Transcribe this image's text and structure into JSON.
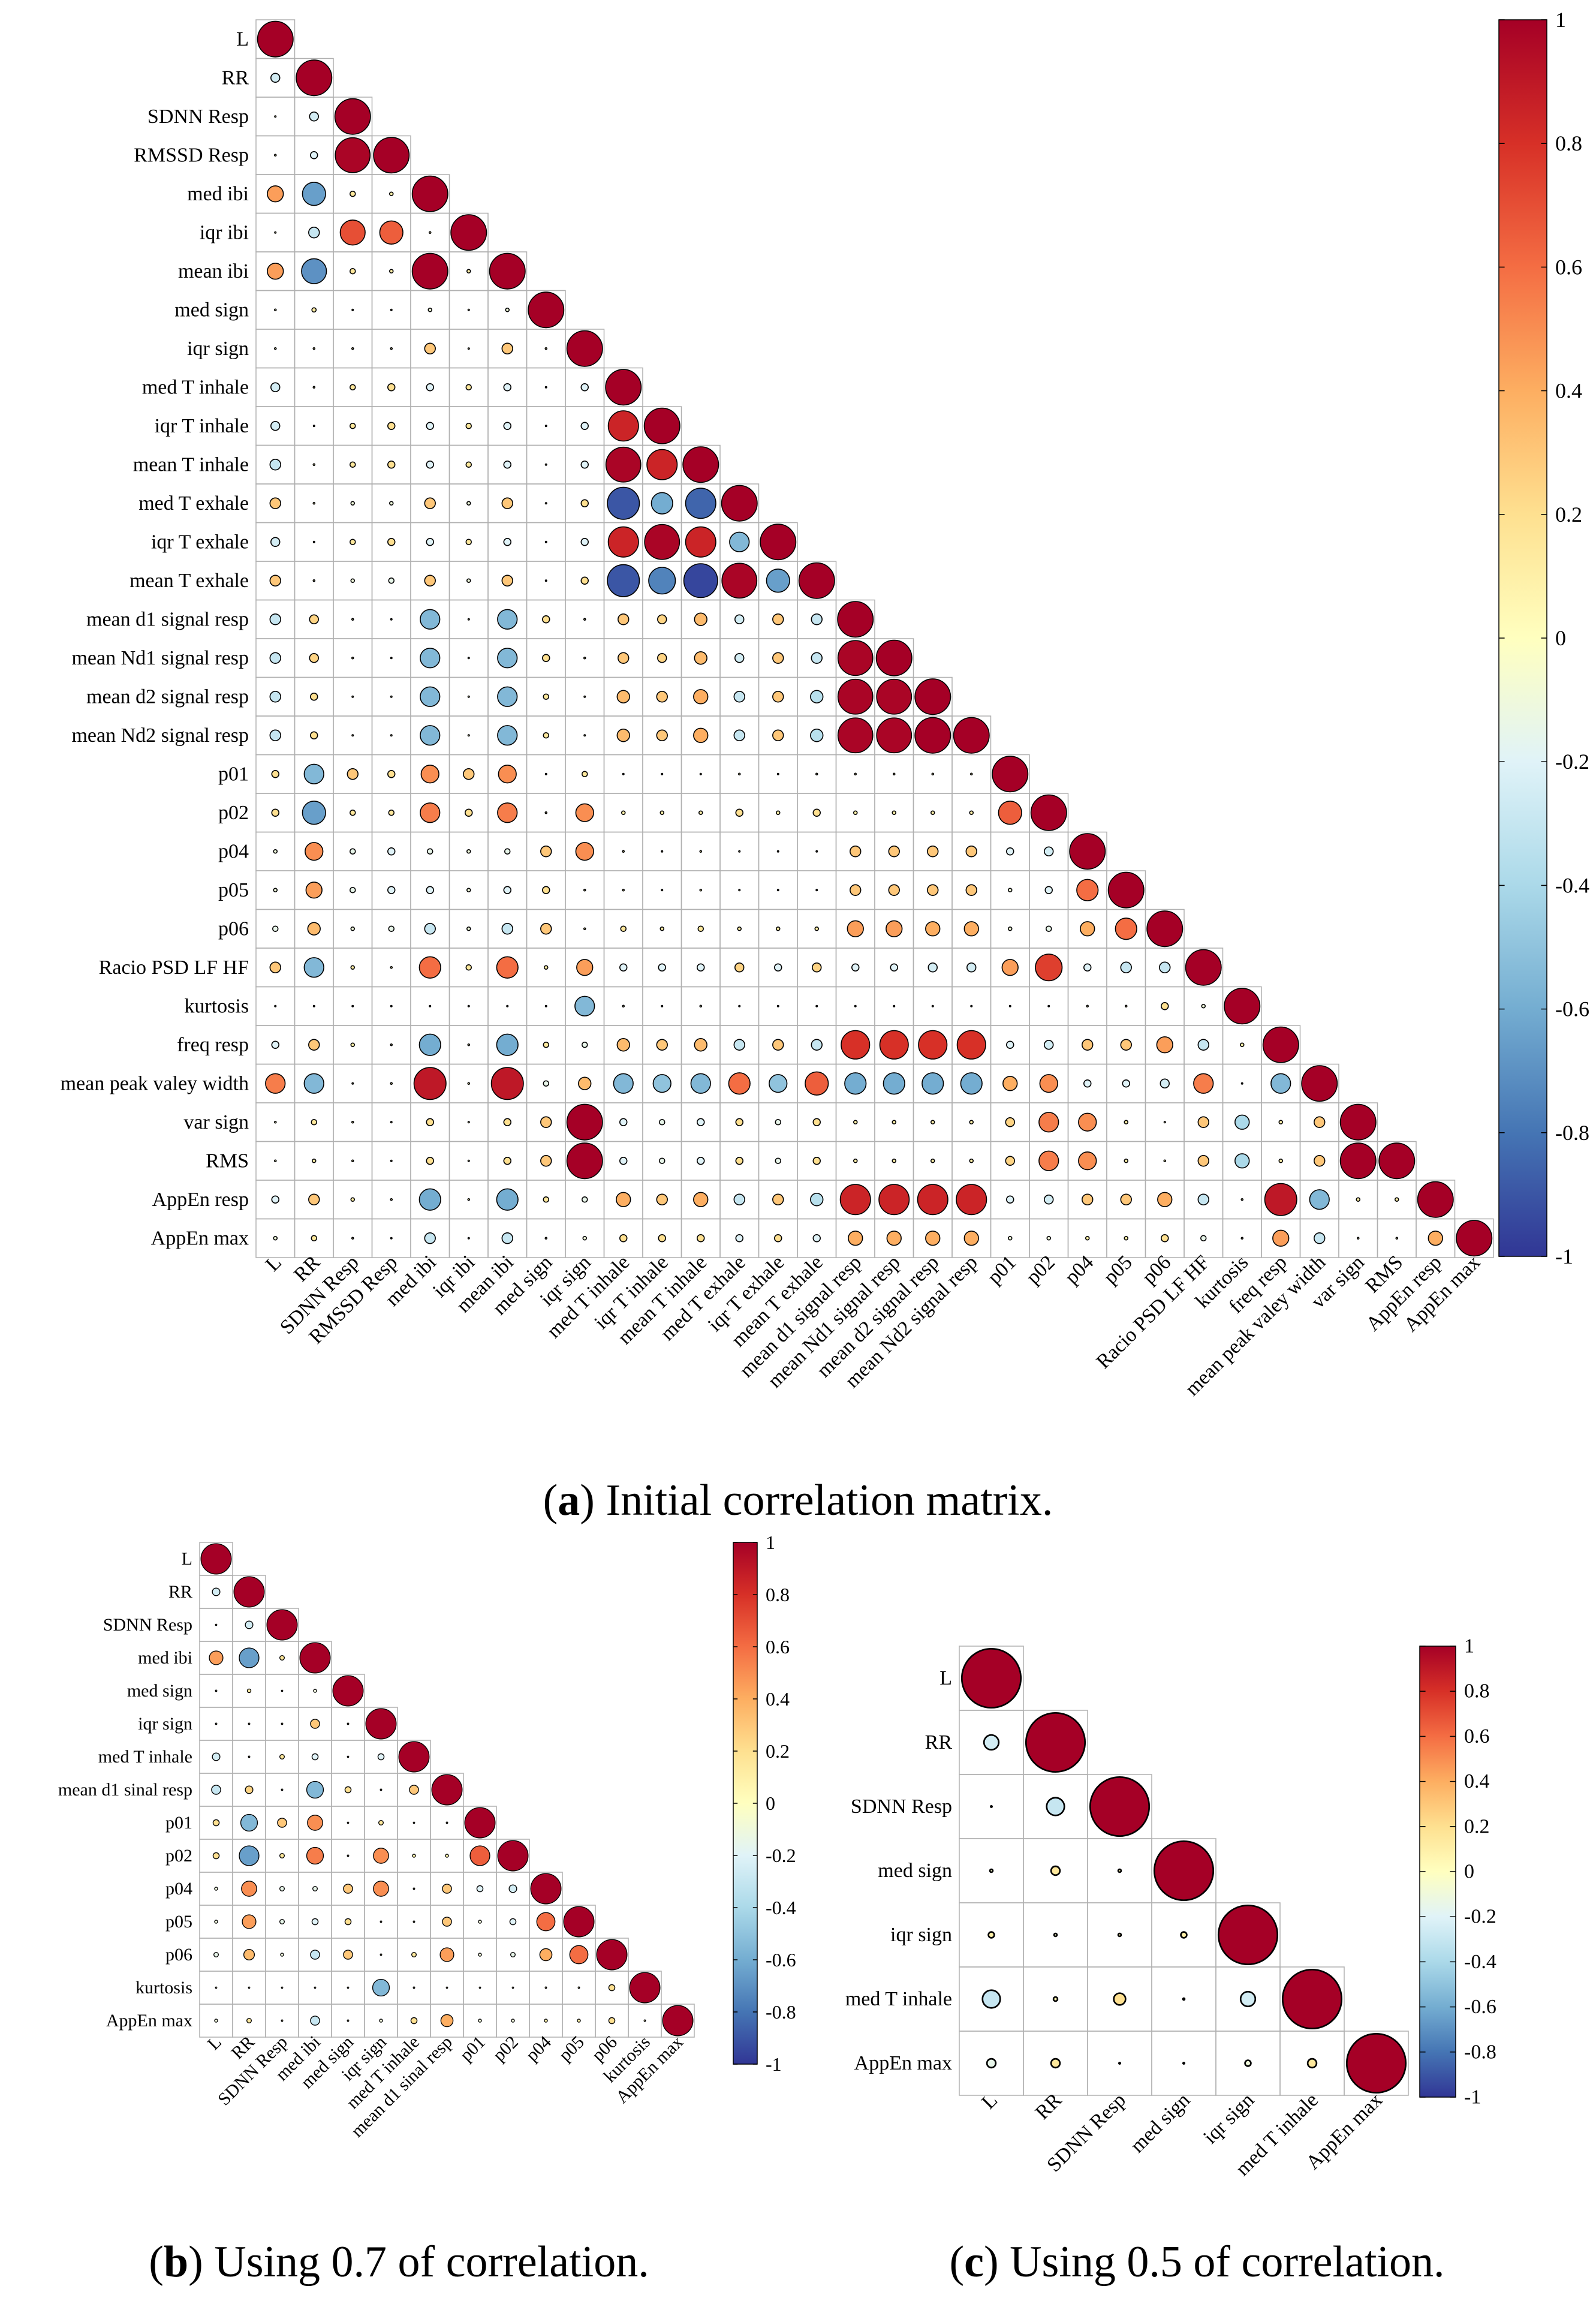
{
  "captions": [
    {
      "letter": "a",
      "text": "Initial correlation matrix."
    },
    {
      "letter": "b",
      "text": "Using 0.7 of correlation."
    },
    {
      "letter": "c",
      "text": "Using 0.5 of correlation."
    }
  ],
  "colors": {
    "stops": [
      "#313695",
      "#4575b4",
      "#74add1",
      "#abd9e9",
      "#e0f3f8",
      "#ffffbf",
      "#fee090",
      "#fdae61",
      "#f46d43",
      "#d73027",
      "#a50026"
    ],
    "grid": "#b0b0b0",
    "circle_stroke": "#000000"
  },
  "chart_data": [
    {
      "id": "a",
      "type": "heatmap",
      "title": "Initial correlation matrix.",
      "value_range": [
        -1,
        1
      ],
      "colorbar_ticks": [
        "1",
        "0.8",
        "0.6",
        "0.4",
        "0.2",
        "0",
        "-0.2",
        "-0.4",
        "-0.6",
        "-0.8",
        "-1"
      ],
      "labels": [
        "L",
        "RR",
        "SDNN Resp",
        "RMSSD Resp",
        "med ibi",
        "iqr ibi",
        "mean ibi",
        "med sign",
        "iqr sign",
        "med T inhale",
        "iqr T inhale",
        "mean T inhale",
        "med T exhale",
        "iqr T exhale",
        "mean T exhale",
        "mean d1 signal resp",
        "mean Nd1 signal resp",
        "mean d2 signal resp",
        "mean Nd2 signal resp",
        "p01",
        "p02",
        "p04",
        "p05",
        "p06",
        "Racio PSD LF HF",
        "kurtosis",
        "freq resp",
        "mean peak valey width",
        "var sign",
        "RMS",
        "AppEn resp",
        "AppEn max"
      ],
      "rows": [
        [
          1
        ],
        [
          -0.25,
          1
        ],
        [
          0.02,
          -0.25,
          1
        ],
        [
          0.05,
          -0.2,
          0.98,
          1
        ],
        [
          0.45,
          -0.65,
          0.15,
          0.1,
          1
        ],
        [
          0.02,
          -0.3,
          0.7,
          0.65,
          0.05,
          1
        ],
        [
          0.45,
          -0.7,
          0.15,
          0.1,
          1.0,
          0.1,
          1
        ],
        [
          -0.05,
          0.12,
          0.02,
          0.02,
          -0.1,
          0.01,
          -0.1,
          1
        ],
        [
          -0.05,
          0.05,
          0.05,
          0.05,
          0.3,
          0.02,
          0.3,
          0.05,
          1
        ],
        [
          -0.25,
          0.05,
          0.15,
          0.2,
          -0.2,
          0.15,
          -0.2,
          0.02,
          -0.2,
          1
        ],
        [
          -0.25,
          0.02,
          0.15,
          0.2,
          -0.2,
          0.15,
          -0.2,
          0.02,
          -0.2,
          0.85,
          1
        ],
        [
          -0.3,
          0.05,
          0.15,
          0.2,
          -0.2,
          0.15,
          -0.2,
          0.02,
          -0.2,
          0.98,
          0.85,
          1
        ],
        [
          0.3,
          0.05,
          -0.1,
          -0.1,
          0.3,
          -0.1,
          0.3,
          0.02,
          0.2,
          -0.9,
          -0.6,
          -0.85,
          1
        ],
        [
          -0.25,
          0.02,
          0.15,
          0.2,
          -0.2,
          0.15,
          -0.2,
          0.02,
          -0.2,
          0.85,
          0.98,
          0.85,
          -0.55,
          1
        ],
        [
          0.3,
          0.05,
          -0.1,
          -0.15,
          0.3,
          -0.1,
          0.3,
          0.02,
          0.2,
          -0.9,
          -0.75,
          -0.95,
          0.98,
          -0.65,
          1
        ],
        [
          -0.3,
          0.25,
          0.05,
          0.02,
          -0.55,
          0.02,
          -0.55,
          0.2,
          0.05,
          0.3,
          0.25,
          0.35,
          -0.25,
          0.3,
          -0.3,
          1
        ],
        [
          -0.3,
          0.25,
          0.05,
          0.02,
          -0.55,
          0.02,
          -0.55,
          0.2,
          0.05,
          0.3,
          0.25,
          0.35,
          -0.25,
          0.3,
          -0.3,
          0.98,
          1
        ],
        [
          -0.3,
          0.2,
          0.02,
          0.01,
          -0.55,
          0.02,
          -0.55,
          0.15,
          0.02,
          0.35,
          0.3,
          0.4,
          -0.3,
          0.3,
          -0.35,
          0.98,
          0.98,
          1
        ],
        [
          -0.3,
          0.2,
          0.02,
          0.01,
          -0.55,
          0.02,
          -0.55,
          0.15,
          0.02,
          0.35,
          0.3,
          0.4,
          -0.3,
          0.3,
          -0.35,
          0.98,
          0.98,
          1.0,
          1
        ],
        [
          0.2,
          -0.55,
          0.3,
          0.2,
          0.5,
          0.3,
          0.5,
          -0.01,
          0.15,
          0.02,
          0.02,
          0.02,
          0.05,
          0.02,
          0.05,
          0.05,
          0.05,
          0.05,
          0.05,
          1
        ],
        [
          0.2,
          -0.65,
          0.15,
          0.15,
          0.55,
          0.2,
          0.55,
          0.05,
          0.5,
          0.1,
          0.1,
          0.1,
          0.2,
          0.1,
          0.2,
          0.1,
          0.1,
          0.1,
          0.1,
          0.65,
          1
        ],
        [
          -0.1,
          0.5,
          -0.15,
          -0.2,
          -0.15,
          -0.1,
          -0.15,
          0.3,
          0.5,
          0.05,
          0.02,
          0.05,
          0.01,
          0.02,
          0.02,
          0.3,
          0.3,
          0.3,
          0.3,
          -0.2,
          -0.25,
          1
        ],
        [
          -0.1,
          0.45,
          -0.15,
          -0.2,
          -0.2,
          -0.1,
          -0.2,
          0.2,
          0.05,
          0.05,
          0.02,
          0.05,
          0.02,
          0.02,
          0.02,
          0.3,
          0.3,
          0.3,
          0.3,
          -0.1,
          -0.2,
          0.6,
          1
        ],
        [
          -0.15,
          0.35,
          -0.1,
          -0.15,
          -0.3,
          -0.1,
          -0.3,
          0.3,
          0.05,
          0.15,
          0.1,
          0.15,
          0.1,
          0.1,
          0.1,
          0.45,
          0.45,
          0.4,
          0.4,
          -0.1,
          -0.15,
          0.4,
          0.6,
          1
        ],
        [
          0.3,
          -0.55,
          0.1,
          0.05,
          0.6,
          0.15,
          0.6,
          0.1,
          0.45,
          -0.2,
          -0.2,
          -0.2,
          0.25,
          -0.2,
          0.25,
          -0.2,
          -0.2,
          -0.25,
          -0.25,
          0.45,
          0.75,
          -0.2,
          -0.3,
          -0.3,
          1
        ],
        [
          -0.01,
          0.02,
          0.02,
          0.02,
          0.02,
          0.02,
          0.02,
          0.02,
          -0.55,
          -0.05,
          0.02,
          -0.05,
          0.02,
          0.02,
          0.02,
          0.02,
          0.02,
          0.02,
          0.02,
          0.02,
          0.02,
          0.05,
          0.05,
          0.2,
          -0.1,
          1
        ],
        [
          -0.2,
          0.3,
          0.1,
          0.05,
          -0.6,
          0.05,
          -0.6,
          0.15,
          -0.15,
          0.35,
          0.3,
          0.35,
          -0.3,
          0.3,
          -0.3,
          0.8,
          0.8,
          0.8,
          0.8,
          -0.2,
          -0.25,
          0.3,
          0.3,
          0.45,
          -0.3,
          0.1,
          1
        ],
        [
          0.55,
          -0.55,
          0.02,
          0.05,
          0.9,
          0.05,
          0.9,
          -0.15,
          0.35,
          -0.55,
          -0.5,
          -0.55,
          0.6,
          -0.5,
          0.65,
          -0.6,
          -0.6,
          -0.6,
          -0.6,
          0.4,
          0.5,
          -0.2,
          -0.2,
          -0.25,
          0.55,
          -0.01,
          -0.55,
          1
        ],
        [
          -0.05,
          0.15,
          0.05,
          0.02,
          0.2,
          0.01,
          0.2,
          0.3,
          1.0,
          -0.2,
          -0.15,
          -0.2,
          0.2,
          -0.15,
          0.2,
          0.1,
          0.1,
          0.1,
          0.1,
          0.25,
          0.55,
          0.5,
          0.1,
          0.02,
          0.3,
          -0.4,
          0.1,
          0.3,
          1
        ],
        [
          -0.05,
          0.1,
          0.05,
          0.02,
          0.2,
          0.02,
          0.2,
          0.3,
          1.0,
          -0.2,
          -0.15,
          -0.2,
          0.2,
          -0.15,
          0.2,
          0.1,
          0.1,
          0.1,
          0.1,
          0.25,
          0.55,
          0.5,
          0.1,
          0.05,
          0.3,
          -0.4,
          0.1,
          0.3,
          1.0,
          1
        ],
        [
          -0.2,
          0.3,
          0.1,
          0.05,
          -0.6,
          0.05,
          -0.6,
          0.15,
          -0.15,
          0.4,
          0.3,
          0.4,
          -0.3,
          0.3,
          -0.35,
          0.85,
          0.85,
          0.85,
          0.85,
          -0.2,
          -0.25,
          0.3,
          0.3,
          0.4,
          -0.3,
          0.05,
          0.9,
          -0.55,
          0.1,
          0.1,
          1
        ],
        [
          -0.1,
          0.15,
          0.05,
          0.01,
          -0.3,
          0.02,
          -0.3,
          0.05,
          -0.1,
          0.2,
          0.2,
          0.2,
          -0.2,
          0.2,
          -0.2,
          0.4,
          0.4,
          0.4,
          0.4,
          -0.1,
          -0.1,
          0.1,
          0.1,
          0.2,
          -0.15,
          0.05,
          0.45,
          -0.3,
          0.05,
          0.05,
          0.4,
          1
        ]
      ]
    },
    {
      "id": "b",
      "type": "heatmap",
      "title": "Using 0.7 of correlation.",
      "value_range": [
        -1,
        1
      ],
      "colorbar_ticks": [
        "1",
        "0.8",
        "0.6",
        "0.4",
        "0.2",
        "0",
        "-0.2",
        "-0.4",
        "-0.6",
        "-0.8",
        "-1"
      ],
      "labels": [
        "L",
        "RR",
        "SDNN Resp",
        "med ibi",
        "med sign",
        "iqr sign",
        "med T inhale",
        "mean d1 sinal resp",
        "p01",
        "p02",
        "p04",
        "p05",
        "p06",
        "kurtosis",
        "AppEn max"
      ],
      "rows": [
        [
          1
        ],
        [
          -0.25,
          1
        ],
        [
          0.02,
          -0.25,
          1
        ],
        [
          0.45,
          -0.65,
          0.15,
          1
        ],
        [
          -0.05,
          0.12,
          0.02,
          -0.1,
          1
        ],
        [
          -0.05,
          0.05,
          0.05,
          0.3,
          0.05,
          1
        ],
        [
          -0.25,
          0.05,
          0.15,
          -0.2,
          0.02,
          -0.2,
          1
        ],
        [
          -0.3,
          0.25,
          0.05,
          -0.55,
          0.2,
          0.05,
          0.3,
          1
        ],
        [
          0.2,
          -0.55,
          0.3,
          0.5,
          -0.01,
          0.15,
          0.02,
          0.05,
          1
        ],
        [
          0.2,
          -0.65,
          0.15,
          0.55,
          0.05,
          0.5,
          0.1,
          0.1,
          0.65,
          1
        ],
        [
          -0.1,
          0.5,
          -0.15,
          -0.15,
          0.3,
          0.5,
          0.05,
          0.3,
          -0.2,
          -0.25,
          1
        ],
        [
          -0.1,
          0.45,
          -0.15,
          -0.2,
          0.2,
          0.05,
          0.05,
          0.3,
          -0.1,
          -0.2,
          0.6,
          1
        ],
        [
          -0.15,
          0.35,
          -0.1,
          -0.3,
          0.3,
          0.05,
          0.15,
          0.45,
          -0.1,
          -0.15,
          0.4,
          0.6,
          1
        ],
        [
          -0.01,
          0.02,
          0.02,
          0.02,
          0.02,
          -0.55,
          -0.05,
          0.02,
          0.02,
          0.02,
          0.05,
          0.05,
          0.2,
          1
        ],
        [
          -0.1,
          0.15,
          0.05,
          -0.3,
          0.05,
          -0.1,
          0.2,
          0.4,
          -0.1,
          -0.1,
          0.1,
          0.1,
          0.2,
          0.05,
          1
        ]
      ]
    },
    {
      "id": "c",
      "type": "heatmap",
      "title": "Using 0.5 of correlation.",
      "value_range": [
        -1,
        1
      ],
      "colorbar_ticks": [
        "1",
        "0.8",
        "0.6",
        "0.4",
        "0.2",
        "0",
        "-0.2",
        "-0.4",
        "-0.6",
        "-0.8",
        "-1"
      ],
      "labels": [
        "L",
        "RR",
        "SDNN Resp",
        "med sign",
        "iqr sign",
        "med T inhale",
        "AppEn max"
      ],
      "rows": [
        [
          1
        ],
        [
          -0.25,
          1
        ],
        [
          0.02,
          -0.3,
          1
        ],
        [
          -0.05,
          0.15,
          0.05,
          1
        ],
        [
          0.1,
          -0.05,
          0.05,
          0.1,
          1
        ],
        [
          -0.3,
          0.07,
          0.2,
          0.03,
          -0.25,
          1
        ],
        [
          -0.15,
          0.15,
          0.02,
          0.02,
          -0.1,
          0.15,
          1
        ]
      ]
    }
  ]
}
